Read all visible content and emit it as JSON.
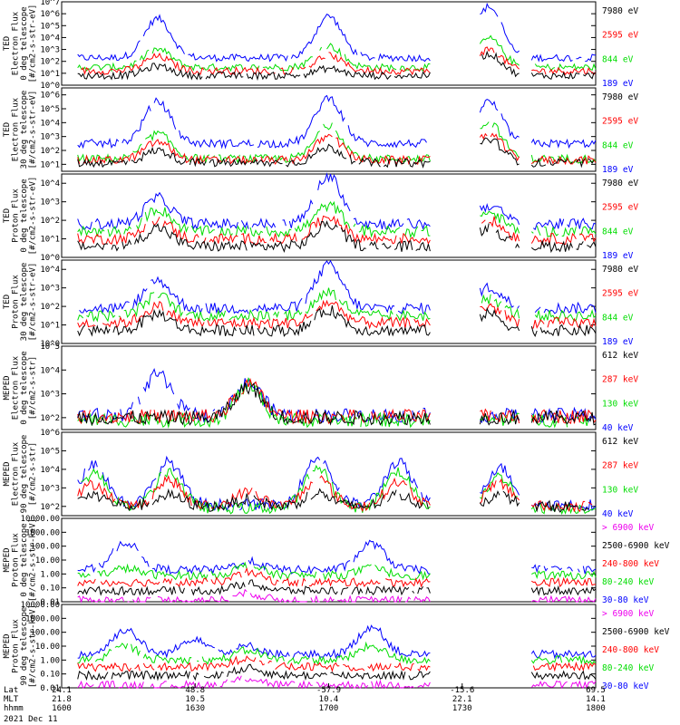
{
  "chart_data": [
    {
      "type": "line",
      "log": true,
      "ylabel": [
        "TED",
        "Electron Flux",
        "0 deg telescope",
        "[#/cm2-s-str-eV]"
      ],
      "ticks": [
        "10^0",
        "10^1",
        "10^2",
        "10^3",
        "10^4",
        "10^5",
        "10^6",
        "10^7"
      ],
      "ylim": [
        0,
        7
      ],
      "series": [
        {
          "name": "7980 eV",
          "color": "#000000",
          "level": 0.8,
          "peaks": [
            [
              0.18,
              1.6
            ],
            [
              0.5,
              1.4
            ],
            [
              0.8,
              2.6
            ]
          ]
        },
        {
          "name": "2595 eV",
          "color": "#ff0000",
          "level": 1.2,
          "peaks": [
            [
              0.18,
              2.4
            ],
            [
              0.5,
              2.5
            ],
            [
              0.8,
              3.0
            ]
          ]
        },
        {
          "name": "844 eV",
          "color": "#00dd00",
          "level": 1.5,
          "peaks": [
            [
              0.18,
              3.0
            ],
            [
              0.5,
              3.3
            ],
            [
              0.8,
              3.9
            ]
          ]
        },
        {
          "name": "189 eV",
          "color": "#0000ff",
          "level": 2.3,
          "peaks": [
            [
              0.18,
              5.6
            ],
            [
              0.5,
              5.8
            ],
            [
              0.8,
              6.6
            ]
          ]
        }
      ]
    },
    {
      "type": "line",
      "log": true,
      "ylabel": [
        "TED",
        "Electron Flux",
        "30 deg telescope",
        "[#/cm2-s-str-eV]"
      ],
      "ticks": [
        "10^1",
        "10^2",
        "10^3",
        "10^4",
        "10^5",
        "10^6"
      ],
      "ylim": [
        0.5,
        6.5
      ],
      "series": [
        {
          "name": "7980 eV",
          "color": "#000000",
          "level": 1.1,
          "peaks": [
            [
              0.18,
              2.0
            ],
            [
              0.5,
              2.2
            ],
            [
              0.8,
              2.8
            ]
          ]
        },
        {
          "name": "2595 eV",
          "color": "#ff0000",
          "level": 1.3,
          "peaks": [
            [
              0.18,
              2.6
            ],
            [
              0.5,
              3.0
            ],
            [
              0.8,
              3.2
            ]
          ]
        },
        {
          "name": "844 eV",
          "color": "#00dd00",
          "level": 1.4,
          "peaks": [
            [
              0.18,
              3.2
            ],
            [
              0.5,
              3.8
            ],
            [
              0.8,
              4.0
            ]
          ]
        },
        {
          "name": "189 eV",
          "color": "#0000ff",
          "level": 2.5,
          "peaks": [
            [
              0.18,
              5.5
            ],
            [
              0.5,
              5.8
            ],
            [
              0.8,
              5.5
            ]
          ]
        }
      ]
    },
    {
      "type": "line",
      "log": true,
      "ylabel": [
        "TED",
        "Proton Flux",
        "0 deg telescope",
        "[#/cm2-s-str-eV]"
      ],
      "ticks": [
        "10^0",
        "10^1",
        "10^2",
        "10^3",
        "10^4"
      ],
      "ylim": [
        0,
        4.5
      ],
      "series": [
        {
          "name": "7980 eV",
          "color": "#000000",
          "level": 0.6,
          "peaks": [
            [
              0.18,
              1.6
            ],
            [
              0.5,
              1.8
            ],
            [
              0.8,
              1.6
            ]
          ]
        },
        {
          "name": "2595 eV",
          "color": "#ff0000",
          "level": 1.0,
          "peaks": [
            [
              0.18,
              2.0
            ],
            [
              0.5,
              2.2
            ],
            [
              0.8,
              2.0
            ]
          ]
        },
        {
          "name": "844 eV",
          "color": "#00dd00",
          "level": 1.4,
          "peaks": [
            [
              0.18,
              2.6
            ],
            [
              0.5,
              2.8
            ],
            [
              0.8,
              2.4
            ]
          ]
        },
        {
          "name": "189 eV",
          "color": "#0000ff",
          "level": 1.8,
          "peaks": [
            [
              0.18,
              3.2
            ],
            [
              0.5,
              4.4
            ],
            [
              0.8,
              2.8
            ]
          ]
        }
      ]
    },
    {
      "type": "line",
      "log": true,
      "ylabel": [
        "TED",
        "Proton Flux",
        "30 deg telescope",
        "[#/cm2-s-str-eV]"
      ],
      "ticks": [
        "10^0",
        "10^1",
        "10^2",
        "10^3",
        "10^4"
      ],
      "ylim": [
        0,
        4.5
      ],
      "series": [
        {
          "name": "7980 eV",
          "color": "#000000",
          "level": 0.7,
          "peaks": [
            [
              0.18,
              1.6
            ],
            [
              0.5,
              1.8
            ],
            [
              0.8,
              1.6
            ]
          ]
        },
        {
          "name": "2595 eV",
          "color": "#ff0000",
          "level": 1.1,
          "peaks": [
            [
              0.18,
              2.0
            ],
            [
              0.5,
              2.2
            ],
            [
              0.8,
              2.0
            ]
          ]
        },
        {
          "name": "844 eV",
          "color": "#00dd00",
          "level": 1.5,
          "peaks": [
            [
              0.18,
              2.6
            ],
            [
              0.5,
              2.8
            ],
            [
              0.8,
              2.4
            ]
          ]
        },
        {
          "name": "189 eV",
          "color": "#0000ff",
          "level": 1.9,
          "peaks": [
            [
              0.18,
              3.4
            ],
            [
              0.5,
              4.2
            ],
            [
              0.8,
              3.0
            ]
          ]
        }
      ]
    },
    {
      "type": "line",
      "log": true,
      "ylabel": [
        "MEPED",
        "Electron Flux",
        "0 deg telescope",
        "[#/cm2-s-str]"
      ],
      "ticks": [
        "10^2",
        "10^3",
        "10^4",
        "10^5"
      ],
      "ylim": [
        1.5,
        5
      ],
      "series": [
        {
          "name": "612 keV",
          "color": "#000000",
          "level": 2.0,
          "peaks": [
            [
              0.35,
              3.3
            ]
          ]
        },
        {
          "name": "287 keV",
          "color": "#ff0000",
          "level": 2.05,
          "peaks": [
            [
              0.35,
              3.4
            ]
          ]
        },
        {
          "name": "130 keV",
          "color": "#00dd00",
          "level": 1.9,
          "peaks": [
            [
              0.35,
              3.35
            ]
          ]
        },
        {
          "name": "40 keV",
          "color": "#0000ff",
          "level": 2.1,
          "peaks": [
            [
              0.35,
              3.45
            ],
            [
              0.18,
              3.8
            ]
          ]
        }
      ]
    },
    {
      "type": "line",
      "log": true,
      "ylabel": [
        "MEPED",
        "Electron Flux",
        "90 deg telescope",
        "[#/cm2-s-str]"
      ],
      "ticks": [
        "10^2",
        "10^3",
        "10^4",
        "10^5",
        "10^6"
      ],
      "ylim": [
        1.5,
        6
      ],
      "series": [
        {
          "name": "612 keV",
          "color": "#000000",
          "level": 2.0,
          "peaks": [
            [
              0.06,
              2.6
            ],
            [
              0.2,
              2.6
            ],
            [
              0.35,
              2.4
            ],
            [
              0.48,
              2.7
            ],
            [
              0.63,
              2.6
            ],
            [
              0.82,
              2.6
            ]
          ]
        },
        {
          "name": "287 keV",
          "color": "#ff0000",
          "level": 2.0,
          "peaks": [
            [
              0.06,
              3.2
            ],
            [
              0.2,
              3.4
            ],
            [
              0.35,
              2.8
            ],
            [
              0.48,
              3.5
            ],
            [
              0.63,
              3.3
            ],
            [
              0.82,
              3.2
            ]
          ]
        },
        {
          "name": "130 keV",
          "color": "#00dd00",
          "level": 1.9,
          "peaks": [
            [
              0.06,
              3.8
            ],
            [
              0.2,
              3.9
            ],
            [
              0.48,
              4.1
            ],
            [
              0.63,
              3.9
            ],
            [
              0.82,
              3.6
            ]
          ]
        },
        {
          "name": "40 keV",
          "color": "#0000ff",
          "level": 2.1,
          "peaks": [
            [
              0.06,
              4.3
            ],
            [
              0.2,
              4.4
            ],
            [
              0.48,
              4.7
            ],
            [
              0.63,
              4.4
            ],
            [
              0.82,
              4.1
            ]
          ]
        }
      ]
    },
    {
      "type": "line",
      "log": true,
      "ylabel": [
        "MEPED",
        "Proton Flux",
        "0 deg telescope",
        "[#/cm2-s-str-keV]"
      ],
      "ticks": [
        "0.01",
        "0.10",
        "1.00",
        "10.00",
        "100.00",
        "1000.00",
        "10000.00"
      ],
      "ylim": [
        -2,
        4
      ],
      "series": [
        {
          "name": "> 6900 keV",
          "color": "#ee00ee",
          "level": -1.9,
          "peaks": [
            [
              0.35,
              -1.4
            ]
          ]
        },
        {
          "name": "2500-6900 keV",
          "color": "#000000",
          "level": -1.2,
          "peaks": [
            [
              0.35,
              -0.7
            ]
          ]
        },
        {
          "name": "240-800 keV",
          "color": "#ff0000",
          "level": -0.6,
          "peaks": [
            [
              0.35,
              0.1
            ]
          ]
        },
        {
          "name": "80-240 keV",
          "color": "#00dd00",
          "level": -0.1,
          "peaks": [
            [
              0.12,
              0.4
            ],
            [
              0.35,
              0.6
            ],
            [
              0.58,
              0.4
            ],
            [
              0.82,
              0.4
            ]
          ]
        },
        {
          "name": "30-80 keV",
          "color": "#0000ff",
          "level": 0.3,
          "peaks": [
            [
              0.12,
              2.3
            ],
            [
              0.35,
              0.9
            ],
            [
              0.58,
              2.2
            ],
            [
              0.82,
              2.6
            ]
          ]
        }
      ]
    },
    {
      "type": "line",
      "log": true,
      "ylabel": [
        "MEPED",
        "Proton Flux",
        "90 deg telescope",
        "[#/cm2-s-str-keV]"
      ],
      "ticks": [
        "0.01",
        "0.10",
        "1.00",
        "10.00",
        "100.00",
        "1000.00",
        "10000.00"
      ],
      "ylim": [
        -2,
        4
      ],
      "series": [
        {
          "name": "> 6900 keV",
          "color": "#ee00ee",
          "level": -1.8,
          "peaks": [
            [
              0.35,
              -1.3
            ]
          ]
        },
        {
          "name": "2500-6900 keV",
          "color": "#000000",
          "level": -1.1,
          "peaks": [
            [
              0.35,
              -0.6
            ]
          ]
        },
        {
          "name": "240-800 keV",
          "color": "#ff0000",
          "level": -0.5,
          "peaks": [
            [
              0.35,
              0.2
            ]
          ]
        },
        {
          "name": "80-240 keV",
          "color": "#00dd00",
          "level": 0.0,
          "peaks": [
            [
              0.12,
              1.0
            ],
            [
              0.35,
              0.7
            ],
            [
              0.58,
              1.0
            ],
            [
              0.82,
              1.2
            ]
          ]
        },
        {
          "name": "30-80 keV",
          "color": "#0000ff",
          "level": 0.4,
          "peaks": [
            [
              0.12,
              2.2
            ],
            [
              0.25,
              1.6
            ],
            [
              0.35,
              1.0
            ],
            [
              0.58,
              2.4
            ],
            [
              0.82,
              2.5
            ]
          ]
        }
      ]
    }
  ],
  "x_axis": {
    "rows": [
      {
        "label": "Lat",
        "values": [
          "24.1",
          "48.8",
          "-57.9",
          "-15.6",
          "69.5"
        ]
      },
      {
        "label": "MLT",
        "values": [
          "21.8",
          "10.5",
          "10.4",
          "22.1",
          "14.1"
        ]
      },
      {
        "label": "hhmm",
        "values": [
          "1600",
          "1630",
          "1700",
          "1730",
          "1800"
        ]
      }
    ],
    "date": "2021 Dec 11"
  }
}
